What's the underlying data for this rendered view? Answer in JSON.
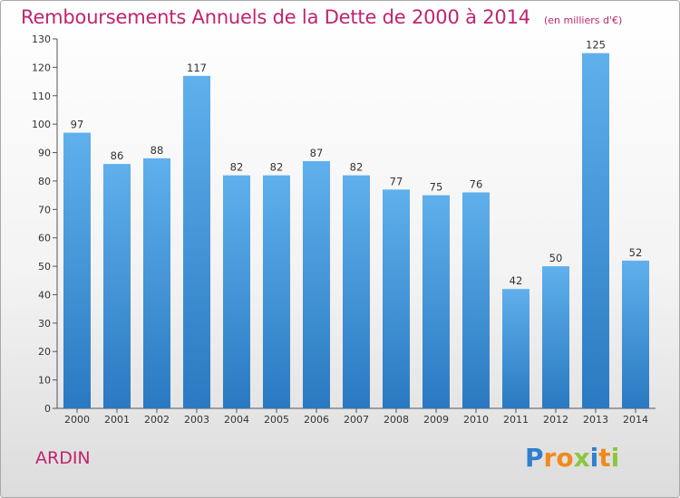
{
  "chart_data": {
    "type": "bar",
    "title": "Remboursements Annuels de la Dette de 2000 à 2014",
    "subtitle": "(en milliers d'€)",
    "categories": [
      "2000",
      "2001",
      "2002",
      "2003",
      "2004",
      "2005",
      "2006",
      "2007",
      "2008",
      "2009",
      "2010",
      "2011",
      "2012",
      "2013",
      "2014"
    ],
    "values": [
      97,
      86,
      88,
      117,
      82,
      82,
      87,
      82,
      77,
      75,
      76,
      42,
      50,
      125,
      52
    ],
    "ylim": [
      0,
      130
    ],
    "yticks": [
      0,
      10,
      20,
      30,
      40,
      50,
      60,
      70,
      80,
      90,
      100,
      110,
      120,
      130
    ],
    "grid": false,
    "legend": "none",
    "bar_color": "#3a8fd8",
    "title_color": "#c0246f"
  },
  "commune": "ARDIN",
  "logo": {
    "text": "Proxiti",
    "letters": [
      {
        "ch": "P",
        "color": "#2f7fd0"
      },
      {
        "ch": "r",
        "color": "#f08a1c"
      },
      {
        "ch": "o",
        "color": "#f08a1c"
      },
      {
        "ch": "x",
        "color": "#8cc63e"
      },
      {
        "ch": "i",
        "color": "#2f7fd0"
      },
      {
        "ch": "t",
        "color": "#f08a1c"
      },
      {
        "ch": "i",
        "color": "#8cc63e"
      }
    ]
  }
}
